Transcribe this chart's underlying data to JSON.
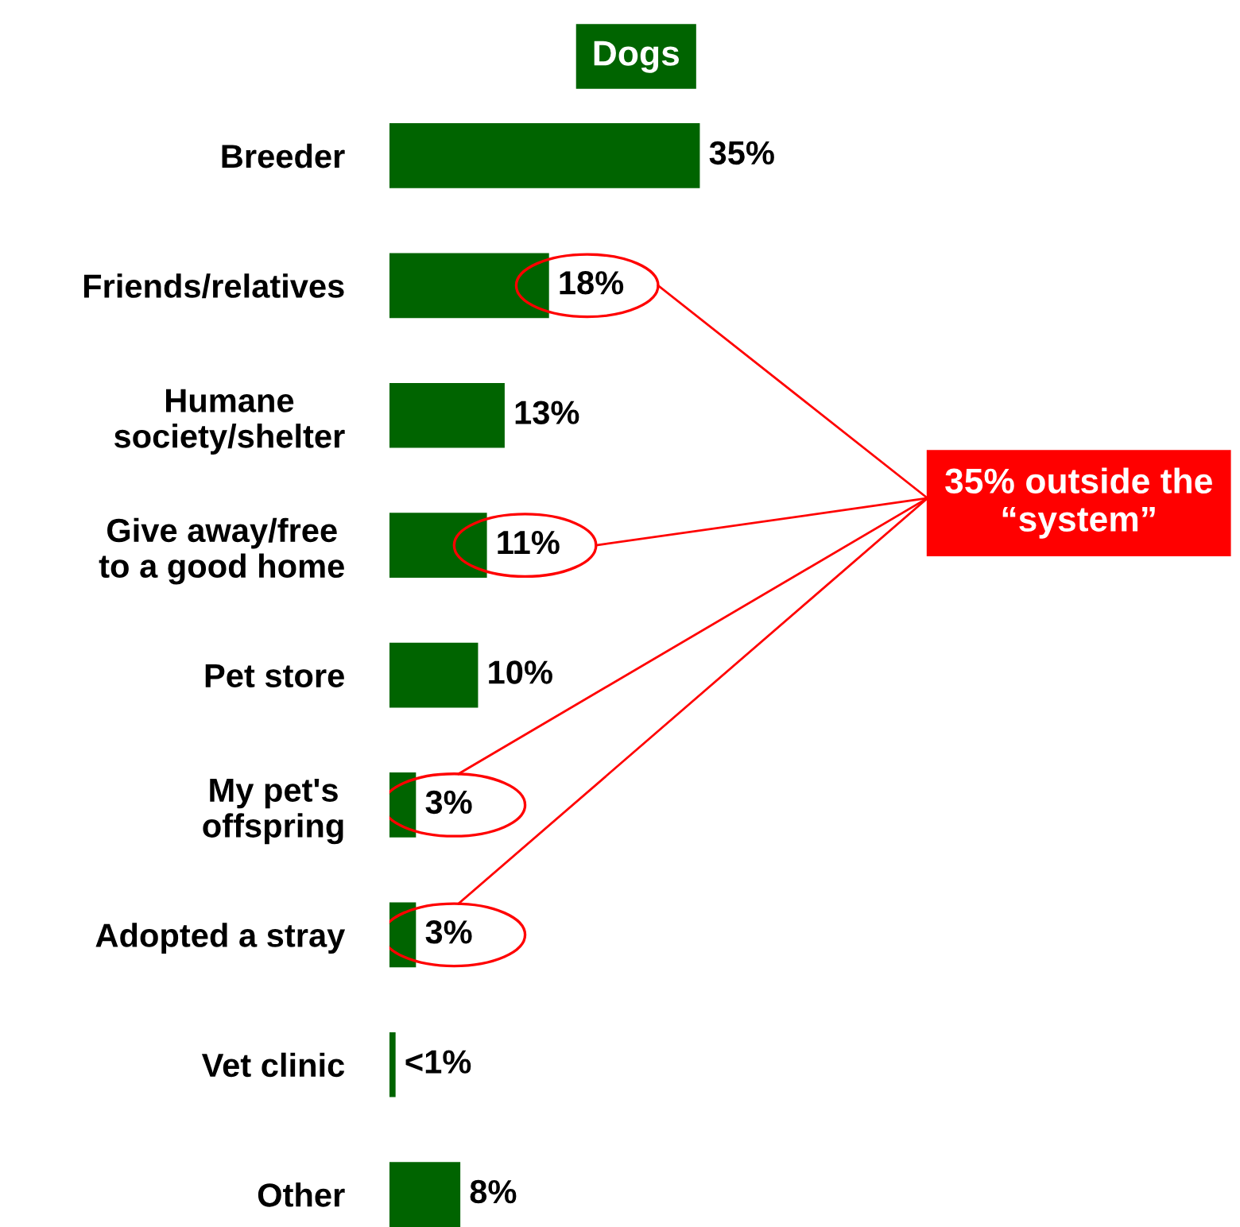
{
  "chart_data": {
    "type": "bar",
    "orientation": "horizontal",
    "title": "Dogs",
    "categories": [
      "Breeder",
      "Friends/relatives",
      "Humane\nsociety/shelter",
      "Give away/free\nto a good home",
      "Pet store",
      "My pet's\noffspring",
      "Adopted a stray",
      "Vet clinic",
      "Other"
    ],
    "values": [
      35,
      18,
      13,
      11,
      10,
      3,
      3,
      0.7,
      8
    ],
    "value_labels": [
      "35%",
      "18%",
      "13%",
      "11%",
      "10%",
      "3%",
      "3%",
      "<1%",
      "8%"
    ],
    "color": "#006400",
    "annotations": [
      "35% outside the “system”"
    ]
  }
}
